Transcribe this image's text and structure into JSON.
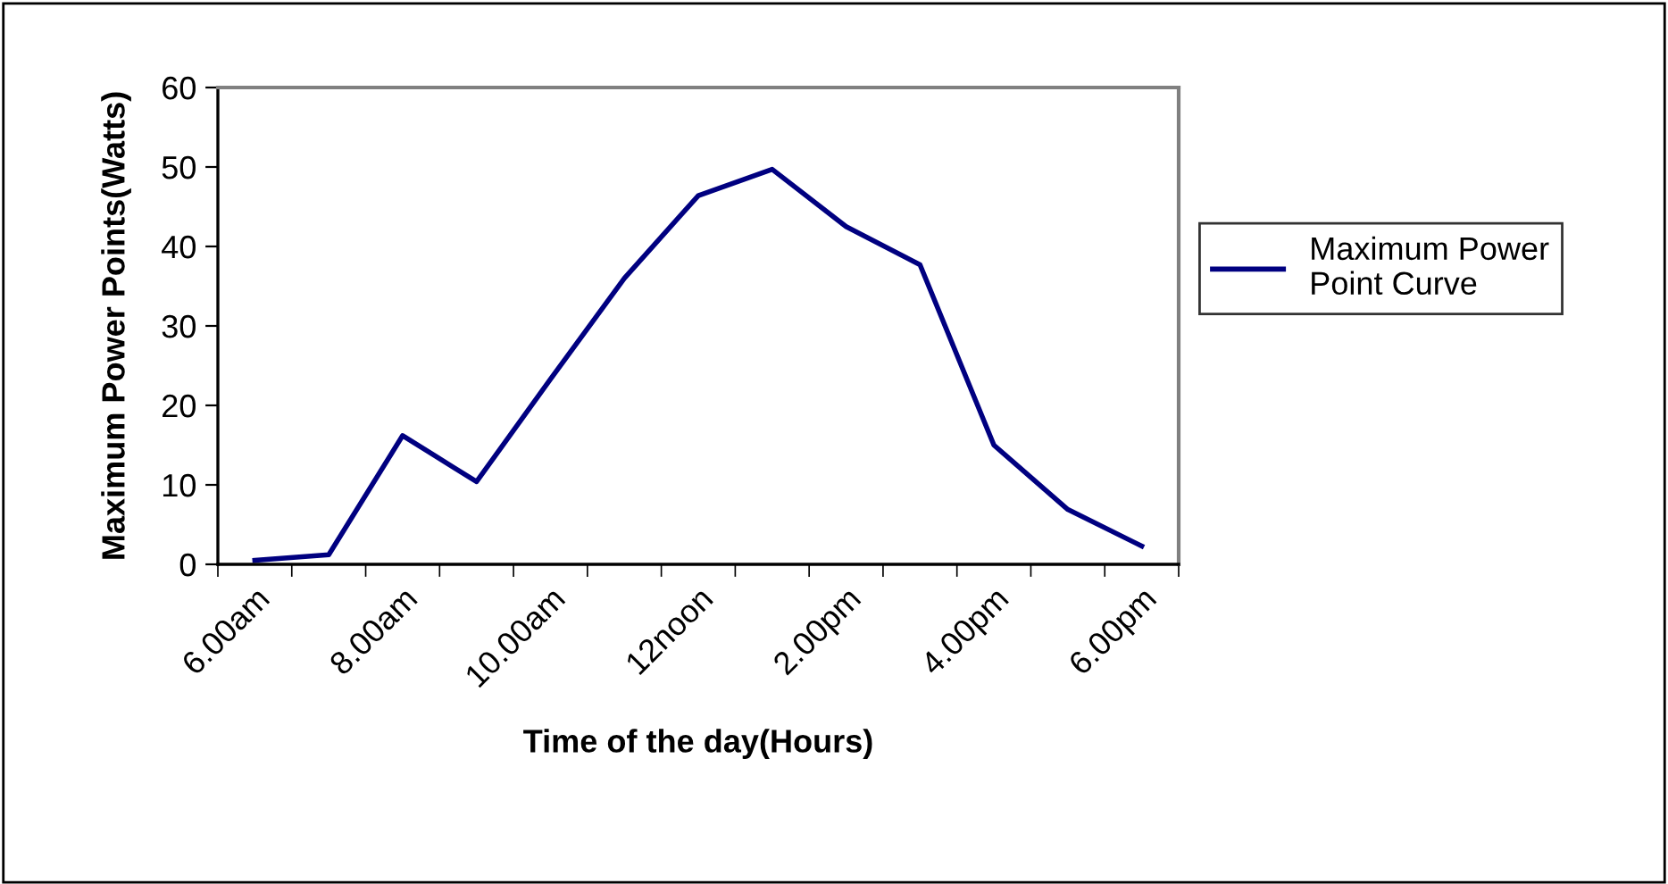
{
  "chart_data": {
    "type": "line",
    "xlabel": "Time of the day(Hours)",
    "ylabel": "Maximum Power Points(Watts)",
    "categories": [
      "6.00am",
      null,
      "8.00am",
      null,
      "10.00am",
      null,
      "12noon",
      null,
      "2.00pm",
      null,
      "4.00pm",
      null,
      "6.00pm"
    ],
    "series": [
      {
        "name": "Maximum Power Point Curve",
        "color": "#000080",
        "values": [
          0.5,
          1.2,
          16.2,
          10.4,
          23.3,
          36.0,
          46.4,
          49.7,
          42.5,
          37.7,
          15.0,
          6.9,
          2.3
        ]
      }
    ],
    "ylim": [
      0,
      60
    ],
    "yticks": [
      0,
      10,
      20,
      30,
      40,
      50,
      60
    ],
    "grid": false,
    "legend": "right",
    "marker": "none",
    "line_style": "solid"
  }
}
